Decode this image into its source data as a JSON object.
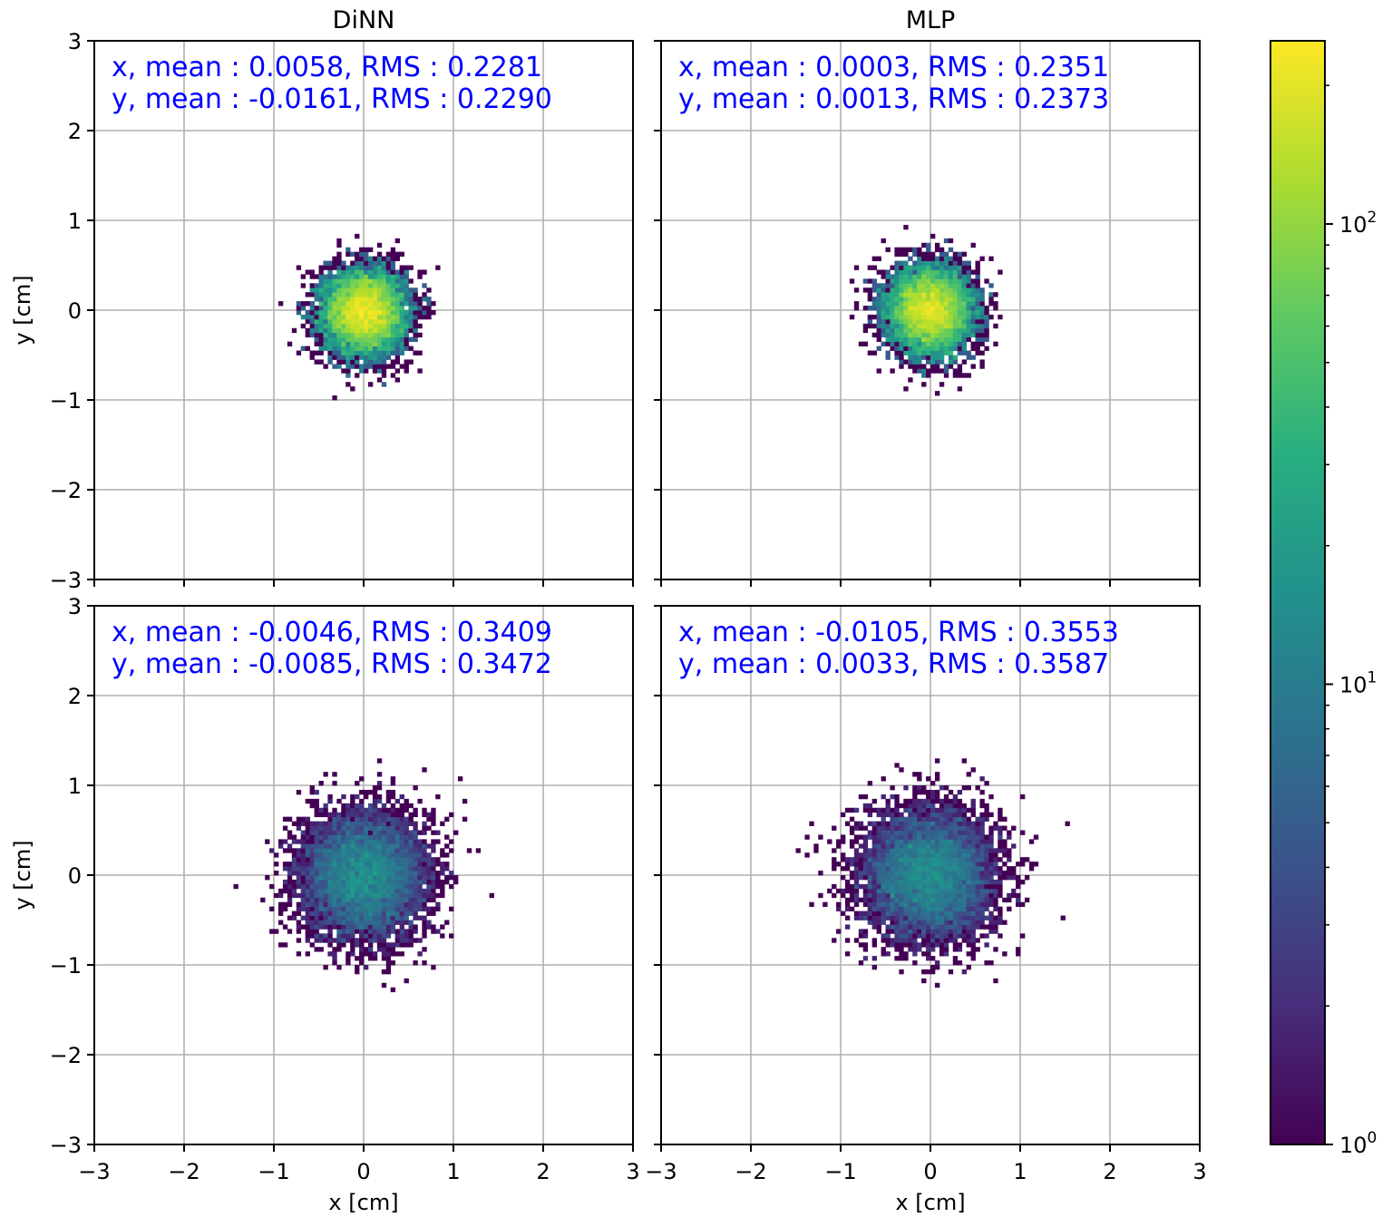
{
  "figure": {
    "axis_range": [
      -3,
      3
    ],
    "ticks": [
      -3,
      -2,
      -1,
      0,
      1,
      2,
      3
    ],
    "tick_labels": [
      "−3",
      "−2",
      "−1",
      "0",
      "1",
      "2",
      "3"
    ],
    "xlabel": "x [cm]",
    "ylabel": "y [cm]",
    "grid": true,
    "stats_color": "#0000ff",
    "colormap": "viridis"
  },
  "chart_data": [
    {
      "type": "heatmap",
      "title": "DiNN",
      "row": "top",
      "x_stats": "x, mean : 0.0058, RMS : 0.2281",
      "y_stats": "y, mean : -0.0161, RMS : 0.2290",
      "x_mean": 0.0058,
      "x_rms": 0.2281,
      "y_mean": -0.0161,
      "y_rms": 0.229,
      "xlim": [
        -3,
        3
      ],
      "ylim": [
        -3,
        3
      ],
      "peak_count": 250
    },
    {
      "type": "heatmap",
      "title": "MLP",
      "row": "top",
      "x_stats": "x, mean : 0.0003, RMS : 0.2351",
      "y_stats": "y, mean : 0.0013, RMS : 0.2373",
      "x_mean": 0.0003,
      "x_rms": 0.2351,
      "y_mean": 0.0013,
      "y_rms": 0.2373,
      "xlim": [
        -3,
        3
      ],
      "ylim": [
        -3,
        3
      ],
      "peak_count": 240
    },
    {
      "type": "heatmap",
      "title": "",
      "row": "bottom",
      "x_stats": "x, mean : -0.0046, RMS : 0.3409",
      "y_stats": "y, mean : -0.0085, RMS : 0.3472",
      "x_mean": -0.0046,
      "x_rms": 0.3409,
      "y_mean": -0.0085,
      "y_rms": 0.3472,
      "xlim": [
        -3,
        3
      ],
      "ylim": [
        -3,
        3
      ],
      "peak_count": 22
    },
    {
      "type": "heatmap",
      "title": "",
      "row": "bottom",
      "x_stats": "x, mean : -0.0105, RMS : 0.3553",
      "y_stats": "y, mean : 0.0033, RMS : 0.3587",
      "x_mean": -0.0105,
      "x_rms": 0.3553,
      "y_mean": 0.0033,
      "y_rms": 0.3587,
      "xlim": [
        -3,
        3
      ],
      "ylim": [
        -3,
        3
      ],
      "peak_count": 20
    }
  ],
  "colorbar": {
    "scale": "log",
    "min": 1,
    "max": 250,
    "ticks": [
      {
        "value": 1,
        "base": "10",
        "exp": "0"
      },
      {
        "value": 10,
        "base": "10",
        "exp": "1"
      },
      {
        "value": 100,
        "base": "10",
        "exp": "2"
      }
    ]
  }
}
